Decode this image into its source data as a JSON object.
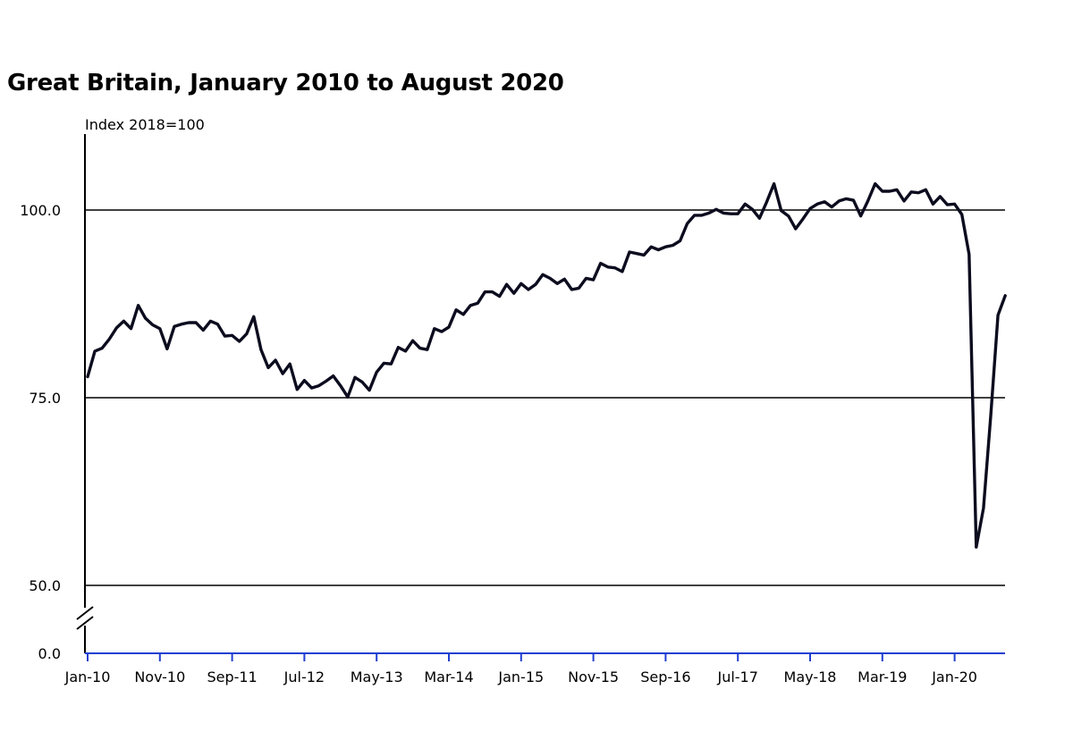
{
  "chart_data": {
    "type": "line",
    "title": "Great Britain, January 2010 to August 2020",
    "ylabel": "Index 2018=100",
    "ylim": [
      0,
      110
    ],
    "yticks": [
      0,
      50,
      75,
      100
    ],
    "ytick_labels": [
      "0.0",
      "50.0",
      "75.0",
      "100.0"
    ],
    "axis_break": true,
    "grid": true,
    "x_tick_labels": [
      "Jan-10",
      "Nov-10",
      "Sep-11",
      "Jul-12",
      "May-13",
      "Mar-14",
      "Jan-15",
      "Nov-15",
      "Sep-16",
      "Jul-17",
      "May-18",
      "Mar-19",
      "Jan-20"
    ],
    "x_start": "Jan-10",
    "x_end": "Aug-20",
    "colors": {
      "line": "#0b0c1e",
      "axis_x": "#1f3fd1",
      "grid": "#000000"
    },
    "series": [
      {
        "values": [
          77.8,
          81.2,
          81.6,
          82.8,
          84.3,
          85.2,
          84.2,
          87.3,
          85.6,
          84.7,
          84.2,
          81.5,
          84.5,
          84.8,
          85.0,
          85.0,
          84.0,
          85.2,
          84.8,
          83.2,
          83.3,
          82.5,
          83.5,
          85.8,
          81.4,
          79.0,
          80.0,
          78.2,
          79.5,
          76.1,
          77.3,
          76.3,
          76.6,
          77.2,
          77.9,
          76.6,
          75.1,
          77.7,
          77.1,
          76.0,
          78.4,
          79.6,
          79.5,
          81.7,
          81.2,
          82.6,
          81.6,
          81.4,
          84.2,
          83.8,
          84.4,
          86.7,
          86.1,
          87.3,
          87.6,
          89.1,
          89.1,
          88.5,
          90.1,
          88.9,
          90.2,
          89.4,
          90.1,
          91.4,
          90.9,
          90.2,
          90.8,
          89.4,
          89.6,
          90.9,
          90.7,
          92.9,
          92.4,
          92.3,
          91.8,
          94.4,
          94.2,
          94.0,
          95.1,
          94.7,
          95.1,
          95.3,
          95.9,
          98.2,
          99.3,
          99.3,
          99.6,
          100.1,
          99.6,
          99.5,
          99.5,
          100.8,
          100.1,
          98.9,
          101.1,
          103.5,
          99.9,
          99.2,
          97.5,
          98.8,
          100.2,
          100.8,
          101.1,
          100.4,
          101.2,
          101.5,
          101.3,
          99.2,
          101.2,
          103.5,
          102.5,
          102.5,
          102.7,
          101.2,
          102.4,
          102.3,
          102.7,
          100.8,
          101.8,
          100.7,
          100.8,
          99.4,
          94.1,
          55.1,
          60.3,
          72.6,
          86.0,
          88.6
        ]
      }
    ]
  }
}
